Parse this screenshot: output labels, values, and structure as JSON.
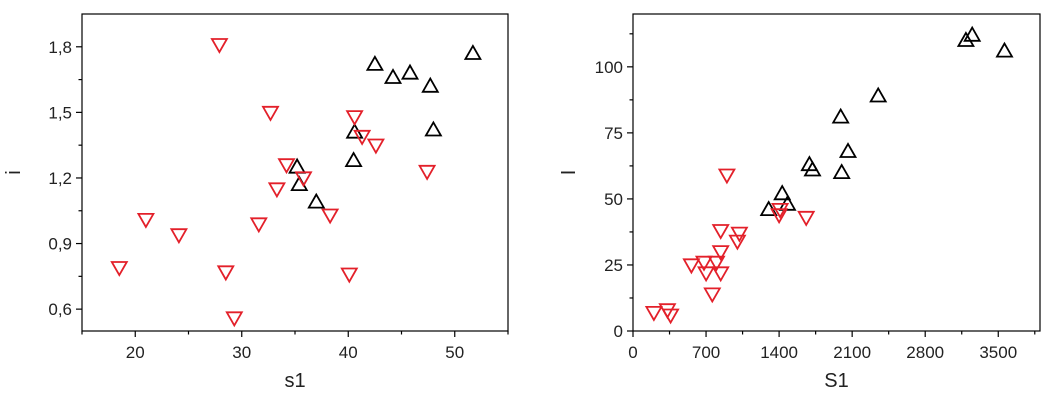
{
  "colors": {
    "black_series": "#000000",
    "red_series": "#e3202a"
  },
  "chart_data": [
    {
      "type": "scatter",
      "xlabel": "s1",
      "ylabel": "i",
      "xlim": [
        15,
        55
      ],
      "ylim": [
        0.5,
        1.95
      ],
      "xticks": [
        20,
        30,
        40,
        50
      ],
      "xtick_labels": [
        "20",
        "30",
        "40",
        "50"
      ],
      "yticks": [
        0.6,
        0.9,
        1.2,
        1.5,
        1.8
      ],
      "ytick_labels": [
        "0,6",
        "0,9",
        "1,2",
        "1,5",
        "1,8"
      ],
      "series": [
        {
          "marker": "triangle-up",
          "color": "#000000",
          "points": [
            [
              35.2,
              1.25
            ],
            [
              35.4,
              1.17
            ],
            [
              37.0,
              1.09
            ],
            [
              40.5,
              1.28
            ],
            [
              40.6,
              1.41
            ],
            [
              42.5,
              1.72
            ],
            [
              44.2,
              1.66
            ],
            [
              45.8,
              1.68
            ],
            [
              47.7,
              1.62
            ],
            [
              48.0,
              1.42
            ],
            [
              51.7,
              1.77
            ]
          ]
        },
        {
          "marker": "triangle-down",
          "color": "#e3202a",
          "points": [
            [
              18.5,
              0.79
            ],
            [
              21.0,
              1.01
            ],
            [
              24.1,
              0.94
            ],
            [
              27.9,
              1.81
            ],
            [
              28.5,
              0.77
            ],
            [
              29.3,
              0.56
            ],
            [
              31.6,
              0.99
            ],
            [
              32.7,
              1.5
            ],
            [
              33.3,
              1.15
            ],
            [
              34.2,
              1.26
            ],
            [
              35.8,
              1.2
            ],
            [
              38.3,
              1.03
            ],
            [
              40.1,
              0.76
            ],
            [
              40.6,
              1.48
            ],
            [
              41.3,
              1.39
            ],
            [
              42.6,
              1.35
            ],
            [
              47.4,
              1.23
            ]
          ]
        }
      ]
    },
    {
      "type": "scatter",
      "xlabel": "S1",
      "ylabel": "I",
      "xlim": [
        0,
        3900
      ],
      "ylim": [
        0,
        120
      ],
      "xticks": [
        0,
        700,
        1400,
        2100,
        2800,
        3500
      ],
      "xtick_labels": [
        "0",
        "700",
        "1400",
        "2100",
        "2800",
        "3500"
      ],
      "yticks": [
        0,
        25,
        50,
        75,
        100
      ],
      "ytick_labels": [
        "0",
        "25",
        "50",
        "75",
        "100"
      ],
      "series": [
        {
          "marker": "triangle-up",
          "color": "#000000",
          "points": [
            [
              1300,
              46
            ],
            [
              1430,
              52
            ],
            [
              1480,
              48
            ],
            [
              1690,
              63
            ],
            [
              1720,
              61
            ],
            [
              1990,
              81
            ],
            [
              2000,
              60
            ],
            [
              2060,
              68
            ],
            [
              2350,
              89
            ],
            [
              3190,
              110
            ],
            [
              3250,
              112
            ],
            [
              3560,
              106
            ]
          ]
        },
        {
          "marker": "triangle-down",
          "color": "#e3202a",
          "points": [
            [
              200,
              7
            ],
            [
              330,
              8
            ],
            [
              360,
              6
            ],
            [
              560,
              25
            ],
            [
              680,
              26
            ],
            [
              700,
              22
            ],
            [
              760,
              14
            ],
            [
              800,
              26
            ],
            [
              840,
              22
            ],
            [
              840,
              30
            ],
            [
              840,
              38
            ],
            [
              900,
              59
            ],
            [
              1000,
              34
            ],
            [
              1020,
              37
            ],
            [
              1400,
              44
            ],
            [
              1410,
              46
            ],
            [
              1660,
              43
            ]
          ]
        }
      ]
    }
  ]
}
